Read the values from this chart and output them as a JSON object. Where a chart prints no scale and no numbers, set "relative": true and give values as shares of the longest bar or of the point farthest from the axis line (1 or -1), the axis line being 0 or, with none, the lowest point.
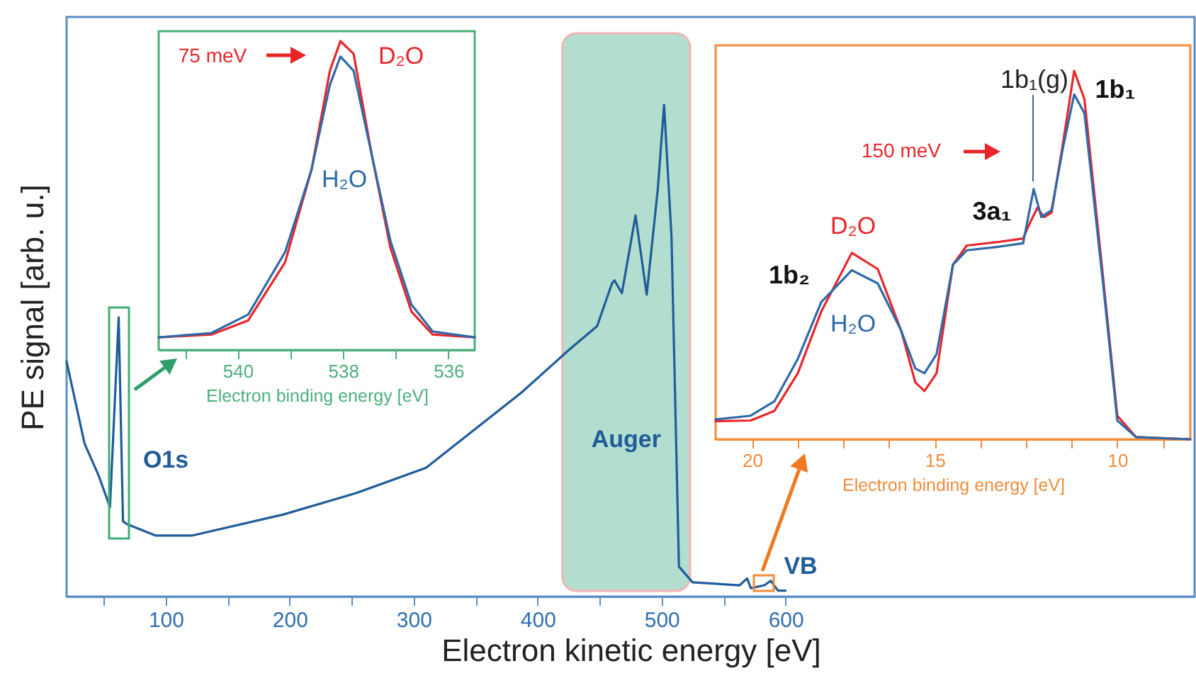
{
  "chart_data": [
    {
      "type": "line",
      "xlabel": "Electron kinetic energy [eV]",
      "ylabel": "PE signal [arb. u.]",
      "relative": true,
      "xlim": [
        20,
        930
      ],
      "xticks": [
        {
          "value": 50,
          "label": null
        },
        100,
        {
          "value": 150,
          "label": null
        },
        200,
        {
          "value": 250,
          "label": null
        },
        300,
        {
          "value": 350,
          "label": null
        },
        400,
        {
          "value": 450,
          "label": null
        },
        500,
        {
          "value": 550,
          "label": null
        },
        600
      ],
      "x": [
        20,
        34.5,
        46,
        55,
        62,
        65.5,
        69,
        92,
        121,
        195,
        253,
        310,
        387,
        425,
        448,
        460,
        462,
        468,
        479,
        488,
        497,
        502,
        508,
        514,
        525,
        563,
        569,
        572,
        583,
        588,
        594,
        600
      ],
      "series": [
        {
          "color": "#1f5c99",
          "values": [
            0.478,
            0.311,
            0.245,
            0.182,
            0.568,
            0.153,
            0.147,
            0.124,
            0.124,
            0.167,
            0.21,
            0.262,
            0.415,
            0.501,
            0.55,
            0.637,
            0.643,
            0.617,
            0.775,
            0.614,
            0.83,
            1,
            0.732,
            0.061,
            0.029,
            0.023,
            0.037,
            0.017,
            0.023,
            0.032,
            0.012,
            0.012
          ]
        }
      ],
      "bands": [
        {
          "axis": "x",
          "from": 420,
          "to": 523,
          "label": "Auger",
          "color": "#b3decf"
        }
      ],
      "annotations": [
        "O1s",
        "VB"
      ]
    },
    {
      "type": "line",
      "xlabel": "Electron binding energy [eV]",
      "relative": true,
      "xlim": [
        541.5,
        535.5
      ],
      "xticks": [
        {
          "value": 541,
          "label": null
        },
        540,
        {
          "value": 539,
          "label": null
        },
        538,
        {
          "value": 537,
          "label": null
        },
        536
      ],
      "x": [
        541.5,
        540.5,
        539.8,
        539.1,
        538.6,
        538.25,
        538.05,
        537.8,
        537.45,
        537.1,
        536.7,
        536.3,
        535.5
      ],
      "series": [
        {
          "name": "D₂O",
          "color": "#e8262a",
          "values": [
            0.041,
            0.05,
            0.096,
            0.284,
            0.583,
            0.904,
            1.0,
            0.959,
            0.628,
            0.33,
            0.124,
            0.05,
            0.041
          ]
        },
        {
          "name": "H₂O",
          "color": "#2e6aa8",
          "values": [
            0.041,
            0.055,
            0.115,
            0.317,
            0.583,
            0.858,
            0.95,
            0.904,
            0.628,
            0.353,
            0.147,
            0.06,
            0.041
          ]
        }
      ],
      "annotations": [
        "75 meV"
      ]
    },
    {
      "type": "line",
      "xlabel": "Electron binding energy [eV]",
      "relative": true,
      "xlim": [
        21,
        8
      ],
      "xticks": [
        20,
        {
          "value": 18.75,
          "label": null
        },
        {
          "value": 17.5,
          "label": null
        },
        {
          "value": 16.25,
          "label": null
        },
        15,
        {
          "value": 13.75,
          "label": null
        },
        {
          "value": 12.5,
          "label": null
        },
        {
          "value": 11.25,
          "label": null
        },
        10,
        {
          "value": 8.75,
          "label": null
        }
      ],
      "series": [
        {
          "name": "D₂O",
          "color": "#e8262a",
          "x": [
            21.0,
            20.04,
            19.39,
            18.75,
            18.11,
            17.27,
            16.56,
            15.92,
            15.53,
            15.28,
            14.95,
            14.5,
            14.12,
            13.22,
            12.58,
            12.38,
            12.19,
            12.0,
            11.8,
            11.48,
            11.18,
            10.9,
            10.39,
            10.0,
            9.49,
            8.0
          ],
          "values": [
            0.049,
            0.051,
            0.077,
            0.179,
            0.346,
            0.506,
            0.462,
            0.295,
            0.154,
            0.131,
            0.179,
            0.474,
            0.526,
            0.536,
            0.545,
            0.59,
            0.628,
            0.603,
            0.615,
            0.808,
            1.0,
            0.923,
            0.44,
            0.064,
            0.006,
            0
          ]
        },
        {
          "name": "H₂O",
          "color": "#2e6aa8",
          "x": [
            21.0,
            20.04,
            19.39,
            18.75,
            18.11,
            17.27,
            16.56,
            15.92,
            15.53,
            15.28,
            14.95,
            14.5,
            14.12,
            13.22,
            12.58,
            12.44,
            12.29,
            12.08,
            11.8,
            11.48,
            11.18,
            10.9,
            10.39,
            10.0,
            9.49,
            8.0
          ],
          "values": [
            0.054,
            0.064,
            0.103,
            0.218,
            0.372,
            0.459,
            0.423,
            0.295,
            0.192,
            0.179,
            0.231,
            0.474,
            0.513,
            0.523,
            0.532,
            0.603,
            0.679,
            0.603,
            0.622,
            0.795,
            0.936,
            0.885,
            0.423,
            0.051,
            0.006,
            0
          ]
        }
      ],
      "annotations": [
        "150 meV",
        "1b₁(g)",
        "3a₁",
        "1b₂",
        "1b₁"
      ]
    }
  ]
}
